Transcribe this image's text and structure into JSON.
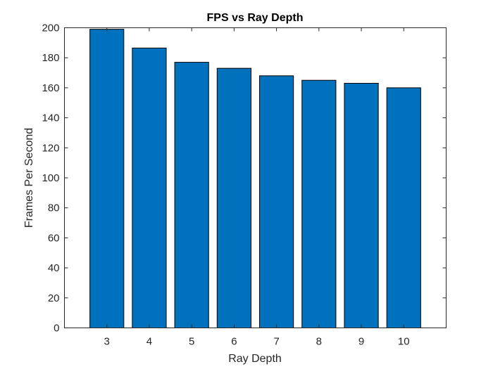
{
  "chart_data": {
    "type": "bar",
    "title": "FPS vs Ray Depth",
    "xlabel": "Ray Depth",
    "ylabel": "Frames Per Second",
    "categories": [
      "3",
      "4",
      "5",
      "6",
      "7",
      "8",
      "9",
      "10"
    ],
    "values": [
      199,
      186.5,
      177,
      173,
      168,
      165,
      163,
      160
    ],
    "ylim": [
      0,
      200
    ],
    "yticks": [
      0,
      20,
      40,
      60,
      80,
      100,
      120,
      140,
      160,
      180,
      200
    ],
    "grid": false,
    "legend": "none",
    "colors": {
      "bar": "#0072BD",
      "bar_edge": "#000000",
      "axes": "#262626"
    }
  }
}
